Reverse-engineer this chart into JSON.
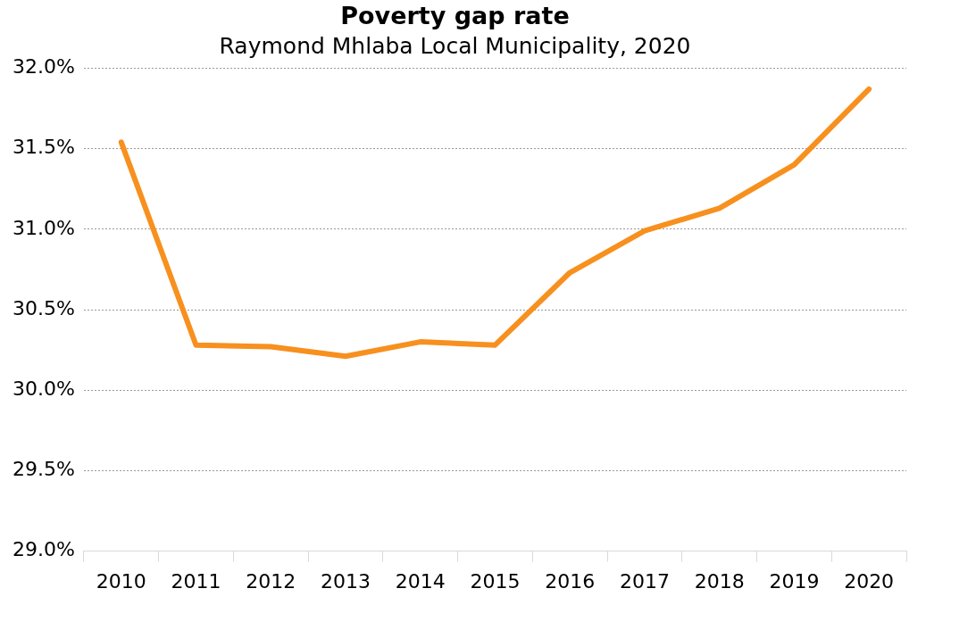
{
  "chart_data": {
    "type": "line",
    "title": "Poverty gap rate",
    "subtitle": "Raymond Mhlaba Local Municipality, 2020",
    "categories": [
      "2010",
      "2011",
      "2012",
      "2013",
      "2014",
      "2015",
      "2016",
      "2017",
      "2018",
      "2019",
      "2020"
    ],
    "series": [
      {
        "color": "#f7901e",
        "values": [
          31.54,
          30.28,
          30.27,
          30.21,
          30.3,
          30.28,
          30.73,
          30.99,
          31.13,
          31.4,
          31.87
        ]
      }
    ],
    "ylim": [
      29,
      32
    ],
    "yticks": [
      {
        "value": 29,
        "label": "29.0%"
      },
      {
        "value": 29.5,
        "label": "29.5%"
      },
      {
        "value": 30,
        "label": "30.0%"
      },
      {
        "value": 30.5,
        "label": "30.5%"
      },
      {
        "value": 31,
        "label": "31.0%"
      },
      {
        "value": 31.5,
        "label": "31.5%"
      },
      {
        "value": 32,
        "label": "32.0%"
      }
    ],
    "grid": "y",
    "legend": false,
    "marker": "none",
    "line_style": "solid"
  }
}
